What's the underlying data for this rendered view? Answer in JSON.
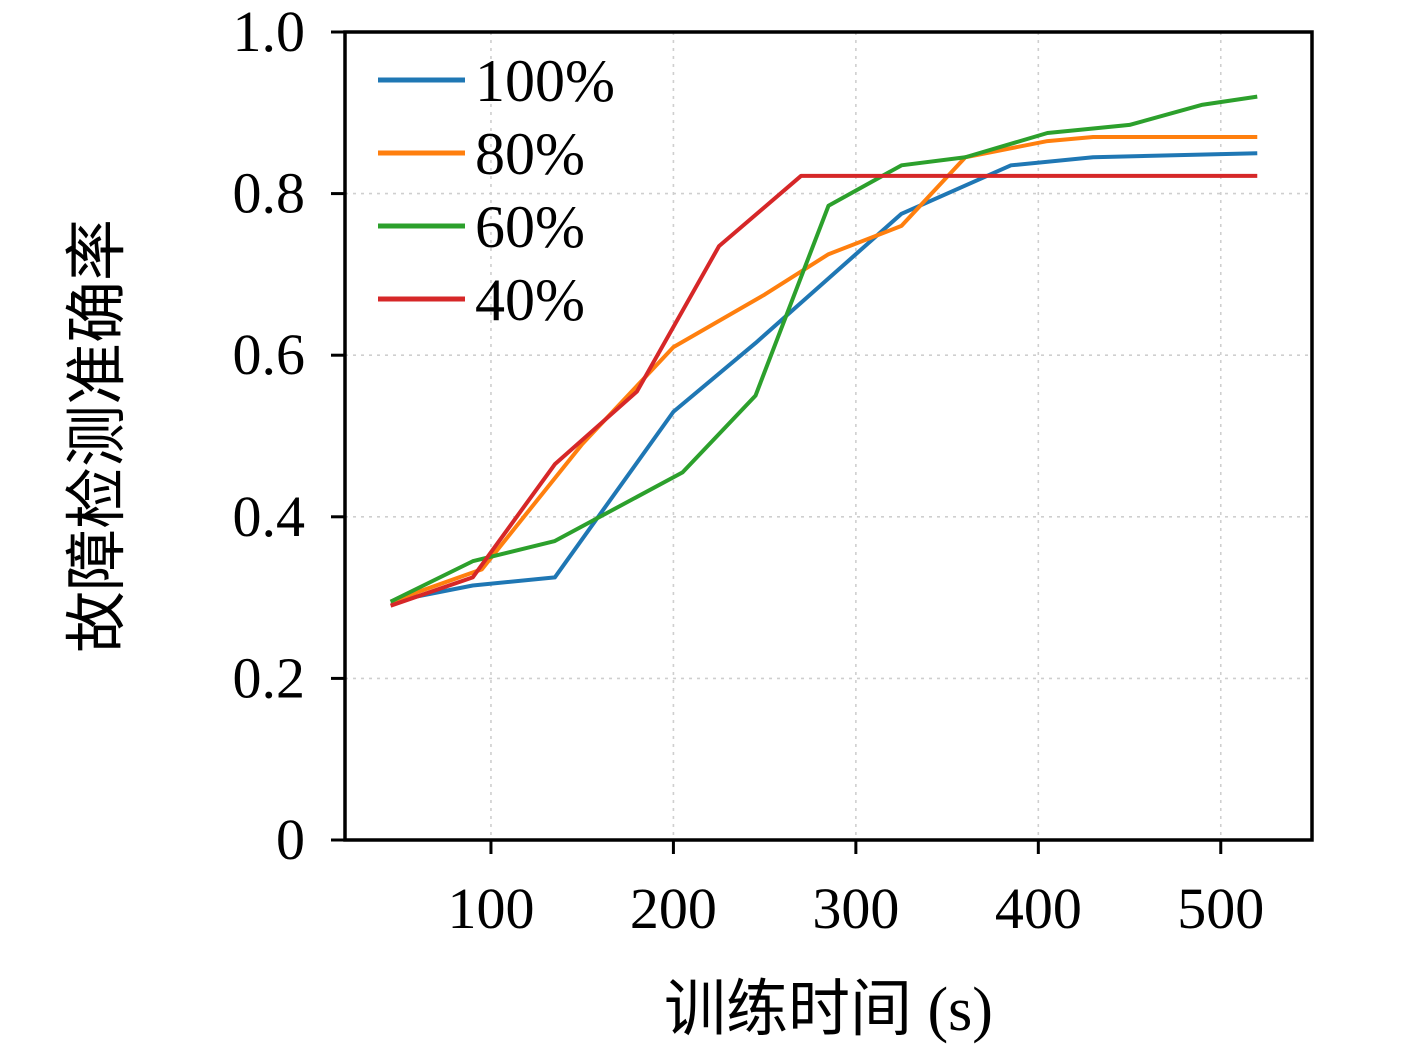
{
  "figure": {
    "background": "#ffffff"
  },
  "chart_data": {
    "type": "line",
    "title": "",
    "xlabel": "训练时间 (s)",
    "ylabel": "故障检测准确率",
    "xlim": [
      20,
      550
    ],
    "ylim": [
      0,
      1.0
    ],
    "xticks": [
      100,
      200,
      300,
      400,
      500
    ],
    "xtick_labels": [
      "100",
      "200",
      "300",
      "400",
      "500"
    ],
    "yticks": [
      0,
      0.2,
      0.4,
      0.6,
      0.8,
      1.0
    ],
    "ytick_labels": [
      "0",
      "0.2",
      "0.4",
      "0.6",
      "0.8",
      "1.0"
    ],
    "grid": true,
    "grid_style": "dashed",
    "legend_position": "upper-left",
    "axis_color": "#000000",
    "series": [
      {
        "name": "100%",
        "color": "#1f77b4",
        "x": [
          45,
          90,
          135,
          200,
          245,
          325,
          385,
          430,
          520
        ],
        "y": [
          0.295,
          0.315,
          0.325,
          0.53,
          0.615,
          0.775,
          0.835,
          0.845,
          0.85
        ]
      },
      {
        "name": "80%",
        "color": "#ff7f0e",
        "x": [
          45,
          95,
          150,
          200,
          250,
          285,
          325,
          360,
          405,
          430,
          520
        ],
        "y": [
          0.295,
          0.335,
          0.49,
          0.61,
          0.675,
          0.725,
          0.76,
          0.845,
          0.865,
          0.87,
          0.87
        ]
      },
      {
        "name": "60%",
        "color": "#2ca02c",
        "x": [
          45,
          90,
          135,
          205,
          245,
          285,
          325,
          360,
          405,
          450,
          490,
          520
        ],
        "y": [
          0.295,
          0.345,
          0.37,
          0.455,
          0.55,
          0.785,
          0.835,
          0.845,
          0.875,
          0.885,
          0.91,
          0.92
        ]
      },
      {
        "name": "40%",
        "color": "#d62728",
        "x": [
          45,
          90,
          135,
          180,
          225,
          270,
          520
        ],
        "y": [
          0.29,
          0.325,
          0.465,
          0.555,
          0.735,
          0.822,
          0.822
        ]
      }
    ]
  }
}
